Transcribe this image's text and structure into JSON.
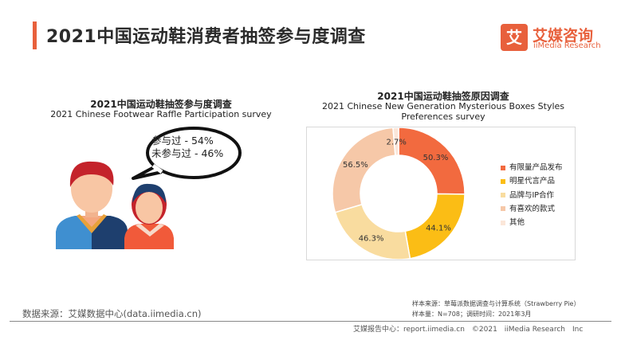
{
  "header": {
    "title": "2021中国运动鞋消费者抽签参与度调查"
  },
  "logo": {
    "mark": "艾",
    "name_cn": "艾媒咨询",
    "name_en": "iiMedia Research"
  },
  "left_panel": {
    "title_cn": "2021中国运动鞋抽签参与度调查",
    "title_en": "2021 Chinese Footwear Raffle Participation survey",
    "participated": "参与过 - 54%",
    "not_participated": "未参与过 - 46%"
  },
  "right_panel": {
    "title_cn": "2021中国运动鞋抽签原因调查",
    "title_en": "2021 Chinese New Generation Mysterious Boxes Styles Preferences survey"
  },
  "chart_data": {
    "type": "pie",
    "title": "2021中国运动鞋抽签原因调查",
    "subtitle": "2021 Chinese New Generation Mysterious Boxes Styles Preferences survey",
    "style": "donut",
    "legend_position": "right",
    "series": [
      {
        "name": "有限量产品发布",
        "value": 50.3,
        "label": "50.3%",
        "color": "#f26a3f"
      },
      {
        "name": "明星代言产品",
        "value": 44.1,
        "label": "44.1%",
        "color": "#fbbd15"
      },
      {
        "name": "品牌与IP合作",
        "value": 46.3,
        "label": "46.3%",
        "color": "#f9dc9f"
      },
      {
        "name": "有喜欢的款式",
        "value": 56.5,
        "label": "56.5%",
        "color": "#f6c8a8"
      },
      {
        "name": "其他",
        "value": 2.7,
        "label": "2.7%",
        "color": "#fbe6d9"
      }
    ]
  },
  "footer": {
    "source": "数据来源：艾媒数据中心(data.iimedia.cn)",
    "sample_source": "样本来源：草莓派数据调查与计算系统（Strawberry Pie）",
    "sample_size": "样本量：N=708；调研时间：2021年3月",
    "copyright": "艾媒报告中心：report.iimedia.cn　©2021　iiMedia Research　Inc"
  }
}
